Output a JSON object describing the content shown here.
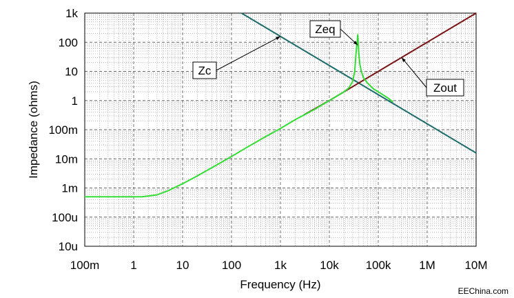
{
  "chart_data": {
    "type": "line",
    "xlabel": "Frequency (Hz)",
    "ylabel": "Impedance (ohms)",
    "x_scale": "log",
    "y_scale": "log",
    "xlim": [
      0.1,
      10000000
    ],
    "ylim": [
      1e-05,
      1000
    ],
    "grid": true,
    "x_ticks": [
      {
        "value": 0.1,
        "label": "100m"
      },
      {
        "value": 1,
        "label": "1"
      },
      {
        "value": 10,
        "label": "10"
      },
      {
        "value": 100,
        "label": "100"
      },
      {
        "value": 1000,
        "label": "1k"
      },
      {
        "value": 10000,
        "label": "10k"
      },
      {
        "value": 100000,
        "label": "100k"
      },
      {
        "value": 1000000,
        "label": "1M"
      },
      {
        "value": 10000000,
        "label": "10M"
      }
    ],
    "y_ticks": [
      {
        "value": 1000,
        "label": "1k"
      },
      {
        "value": 100,
        "label": "100"
      },
      {
        "value": 10,
        "label": "10"
      },
      {
        "value": 1,
        "label": "1"
      },
      {
        "value": 0.1,
        "label": "100m"
      },
      {
        "value": 0.01,
        "label": "10m"
      },
      {
        "value": 0.001,
        "label": "1m"
      },
      {
        "value": 0.0001,
        "label": "100u"
      },
      {
        "value": 1e-05,
        "label": "10u"
      }
    ],
    "series": [
      {
        "name": "Zc",
        "color": "#1e6b6b",
        "points": [
          [
            160,
            1000
          ],
          [
            1000,
            159
          ],
          [
            10000,
            15.9
          ],
          [
            100000,
            1.59
          ],
          [
            1000000,
            0.159
          ],
          [
            10000000,
            0.0159
          ]
        ]
      },
      {
        "name": "Zout",
        "color": "#7a1414",
        "points": [
          [
            3000,
            0.32
          ],
          [
            10000,
            1.0
          ],
          [
            100000,
            10
          ],
          [
            1000000,
            100
          ],
          [
            10000000,
            1000
          ]
        ]
      },
      {
        "name": "Zeq",
        "color": "#33dd33",
        "points": [
          [
            0.1,
            0.0005
          ],
          [
            0.5,
            0.0005
          ],
          [
            1,
            0.0005
          ],
          [
            1.5,
            0.0005
          ],
          [
            3,
            0.00058
          ],
          [
            5,
            0.0008
          ],
          [
            10,
            0.0014
          ],
          [
            20,
            0.0026
          ],
          [
            50,
            0.0062
          ],
          [
            100,
            0.012
          ],
          [
            200,
            0.024
          ],
          [
            500,
            0.058
          ],
          [
            1000,
            0.11
          ],
          [
            2000,
            0.22
          ],
          [
            5000,
            0.5
          ],
          [
            10000,
            1.0
          ],
          [
            20000,
            2.0
          ],
          [
            25000,
            2.7
          ],
          [
            30000,
            4.5
          ],
          [
            33000,
            10
          ],
          [
            35000,
            40
          ],
          [
            37000,
            100
          ],
          [
            38000,
            180
          ],
          [
            39000,
            90
          ],
          [
            40000,
            40
          ],
          [
            42000,
            18
          ],
          [
            45000,
            10
          ],
          [
            50000,
            6
          ],
          [
            60000,
            4
          ],
          [
            80000,
            2.5
          ],
          [
            100000,
            2.0
          ],
          [
            130000,
            1.5
          ],
          [
            160000,
            1.2
          ],
          [
            200000,
            0.9
          ]
        ]
      }
    ],
    "annotations": [
      {
        "text": "Zc",
        "series": "Zc",
        "target": [
          1000,
          159
        ]
      },
      {
        "text": "Zeq",
        "series": "Zeq",
        "target": [
          38000,
          80
        ]
      },
      {
        "text": "Zout",
        "series": "Zout",
        "target": [
          300000,
          30
        ]
      }
    ]
  },
  "watermark": "EEChina.com"
}
